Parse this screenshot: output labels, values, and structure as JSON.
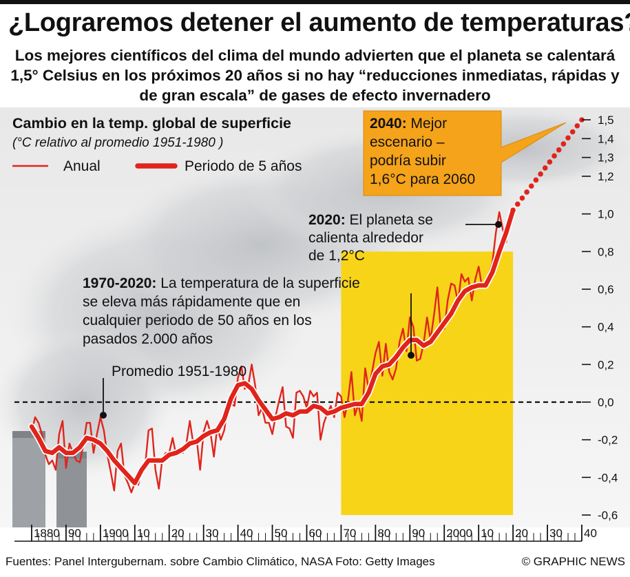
{
  "header": {
    "title": "¿Lograremos detener el aumento de temperaturas?",
    "subtitle": "Los mejores científicos del clima del mundo advierten que el planeta se calentará 1,5° Celsius en los próximos 20 años si no hay “reducciones inmediatas, rápidas y de gran escala” de gases de efecto invernadero"
  },
  "footer": {
    "sources": "Fuentes: Panel Intergubernam. sobre Cambio Climático, NASA   Foto: Getty Images",
    "credit": "© GRAPHIC NEWS"
  },
  "colors": {
    "line": "#e0241b",
    "highlight": "#f7d418",
    "callout": "#f5a31b",
    "dark": "#111111"
  },
  "chart_data": {
    "type": "line",
    "title": "Cambio en la temp. global de superficie",
    "subtitle": "(°C relativo al promedio 1951-1980 )",
    "xlim": [
      1875,
      2040
    ],
    "ylim": [
      -0.6,
      1.5
    ],
    "yticks": [
      1.5,
      1.4,
      1.3,
      1.2,
      1.0,
      0.8,
      0.6,
      0.4,
      0.2,
      0.0,
      -0.2,
      -0.4,
      -0.6
    ],
    "ytick_labels": [
      "1,5",
      "1,4",
      "1,3",
      "1,2",
      "1,0",
      "0,8",
      "0,6",
      "0,4",
      "0,2",
      "0,0",
      "-0,2",
      "-0,4",
      "-0,6"
    ],
    "xticks": [
      1880,
      1890,
      1900,
      1910,
      1920,
      1930,
      1940,
      1950,
      1960,
      1970,
      1980,
      1990,
      2000,
      2010,
      2020,
      2030,
      2040
    ],
    "xtick_labels": [
      "1880",
      "90",
      "1900",
      "10",
      "20",
      "30",
      "40",
      "50",
      "60",
      "70",
      "80",
      "90",
      "2000",
      "10",
      "20",
      "30",
      "40"
    ],
    "legend": [
      {
        "label": "Anual"
      },
      {
        "label": "Periodo de 5 años"
      }
    ],
    "highlight_range": [
      1970,
      2020
    ],
    "baseline": 0.0,
    "series": [
      {
        "name": "Anual",
        "x": [
          1880,
          1881,
          1882,
          1883,
          1884,
          1885,
          1886,
          1887,
          1888,
          1889,
          1890,
          1891,
          1892,
          1893,
          1894,
          1895,
          1896,
          1897,
          1898,
          1899,
          1900,
          1901,
          1902,
          1903,
          1904,
          1905,
          1906,
          1907,
          1908,
          1909,
          1910,
          1911,
          1912,
          1913,
          1914,
          1915,
          1916,
          1917,
          1918,
          1919,
          1920,
          1921,
          1922,
          1923,
          1924,
          1925,
          1926,
          1927,
          1928,
          1929,
          1930,
          1931,
          1932,
          1933,
          1934,
          1935,
          1936,
          1937,
          1938,
          1939,
          1940,
          1941,
          1942,
          1943,
          1944,
          1945,
          1946,
          1947,
          1948,
          1949,
          1950,
          1951,
          1952,
          1953,
          1954,
          1955,
          1956,
          1957,
          1958,
          1959,
          1960,
          1961,
          1962,
          1963,
          1964,
          1965,
          1966,
          1967,
          1968,
          1969,
          1970,
          1971,
          1972,
          1973,
          1974,
          1975,
          1976,
          1977,
          1978,
          1979,
          1980,
          1981,
          1982,
          1983,
          1984,
          1985,
          1986,
          1987,
          1988,
          1989,
          1990,
          1991,
          1992,
          1993,
          1994,
          1995,
          1996,
          1997,
          1998,
          1999,
          2000,
          2001,
          2002,
          2003,
          2004,
          2005,
          2006,
          2007,
          2008,
          2009,
          2010,
          2011,
          2012,
          2013,
          2014,
          2015,
          2016,
          2017,
          2018,
          2019,
          2020
        ],
        "values": [
          -0.16,
          -0.08,
          -0.11,
          -0.17,
          -0.28,
          -0.33,
          -0.31,
          -0.36,
          -0.17,
          -0.1,
          -0.35,
          -0.22,
          -0.27,
          -0.31,
          -0.32,
          -0.23,
          -0.11,
          -0.11,
          -0.27,
          -0.17,
          -0.08,
          -0.15,
          -0.28,
          -0.37,
          -0.47,
          -0.26,
          -0.22,
          -0.39,
          -0.43,
          -0.48,
          -0.43,
          -0.44,
          -0.36,
          -0.34,
          -0.15,
          -0.14,
          -0.36,
          -0.46,
          -0.3,
          -0.27,
          -0.27,
          -0.19,
          -0.28,
          -0.26,
          -0.27,
          -0.22,
          -0.1,
          -0.22,
          -0.2,
          -0.36,
          -0.16,
          -0.1,
          -0.16,
          -0.29,
          -0.13,
          -0.2,
          -0.15,
          -0.03,
          -0.01,
          -0.02,
          0.13,
          0.19,
          0.07,
          0.09,
          0.2,
          0.09,
          -0.07,
          -0.03,
          -0.11,
          -0.11,
          -0.17,
          -0.07,
          0.01,
          0.08,
          -0.13,
          -0.14,
          -0.19,
          0.05,
          0.06,
          0.03,
          -0.03,
          0.06,
          0.03,
          0.05,
          -0.2,
          -0.11,
          -0.06,
          -0.02,
          -0.08,
          0.05,
          0.03,
          -0.08,
          0.01,
          0.16,
          -0.07,
          -0.01,
          -0.1,
          0.18,
          0.07,
          0.16,
          0.26,
          0.32,
          0.14,
          0.31,
          0.16,
          0.12,
          0.18,
          0.32,
          0.39,
          0.27,
          0.45,
          0.4,
          0.22,
          0.23,
          0.31,
          0.45,
          0.33,
          0.46,
          0.61,
          0.38,
          0.39,
          0.54,
          0.63,
          0.62,
          0.53,
          0.68,
          0.64,
          0.66,
          0.54,
          0.65,
          0.72,
          0.61,
          0.64,
          0.68,
          0.74,
          0.9,
          1.01,
          0.92,
          0.85,
          0.98,
          1.02
        ]
      },
      {
        "name": "Periodo de 5 años",
        "x": [
          1880,
          1882,
          1884,
          1886,
          1888,
          1890,
          1892,
          1894,
          1896,
          1898,
          1900,
          1902,
          1904,
          1906,
          1908,
          1910,
          1912,
          1914,
          1916,
          1918,
          1920,
          1922,
          1924,
          1926,
          1928,
          1930,
          1932,
          1934,
          1936,
          1938,
          1940,
          1942,
          1944,
          1946,
          1948,
          1950,
          1952,
          1954,
          1956,
          1958,
          1960,
          1962,
          1964,
          1966,
          1968,
          1970,
          1972,
          1974,
          1976,
          1978,
          1980,
          1982,
          1984,
          1986,
          1988,
          1990,
          1992,
          1994,
          1996,
          1998,
          2000,
          2002,
          2004,
          2006,
          2008,
          2010,
          2012,
          2014,
          2016,
          2018,
          2020
        ],
        "values": [
          -0.13,
          -0.19,
          -0.26,
          -0.27,
          -0.24,
          -0.27,
          -0.27,
          -0.24,
          -0.19,
          -0.2,
          -0.22,
          -0.26,
          -0.31,
          -0.35,
          -0.39,
          -0.43,
          -0.36,
          -0.31,
          -0.31,
          -0.31,
          -0.28,
          -0.27,
          -0.25,
          -0.22,
          -0.21,
          -0.18,
          -0.16,
          -0.15,
          -0.09,
          0.02,
          0.09,
          0.1,
          0.07,
          0.01,
          -0.04,
          -0.09,
          -0.08,
          -0.06,
          -0.07,
          -0.05,
          -0.05,
          -0.02,
          -0.03,
          -0.06,
          -0.05,
          -0.03,
          -0.02,
          -0.01,
          -0.01,
          0.05,
          0.15,
          0.19,
          0.2,
          0.24,
          0.29,
          0.33,
          0.33,
          0.3,
          0.32,
          0.37,
          0.42,
          0.47,
          0.54,
          0.59,
          0.61,
          0.62,
          0.62,
          0.69,
          0.8,
          0.9,
          1.02
        ]
      },
      {
        "name": "Proyección",
        "x": [
          2020,
          2040
        ],
        "values": [
          1.02,
          1.5
        ]
      }
    ],
    "annotations": [
      {
        "bold": "2040:",
        "text": "Mejor escenario – podría subir 1,6°C para 2060",
        "lines": [
          "2040: Mejor",
          "escenario –",
          "podría subir",
          "1,6°C para 2060"
        ]
      },
      {
        "bold": "2020:",
        "text": "El planeta se calienta alrededor de 1,2°C",
        "lines": [
          "2020: El planeta se",
          "calienta alrededor",
          "de 1,2°C"
        ]
      },
      {
        "bold": "1970-2020:",
        "text": "La temperatura de la superficie se eleva más rápidamente que en cualquier periodo de 50 años en los pasados 2.000 años",
        "lines": [
          "1970-2020: La temperatura de la superficie",
          "se eleva más rápidamente que en",
          "cualquier periodo de 50 años en los",
          "pasados 2.000 años"
        ]
      },
      {
        "bold": "",
        "text": "Promedio 1951-1980",
        "lines": [
          "Promedio 1951-1980"
        ]
      }
    ]
  }
}
